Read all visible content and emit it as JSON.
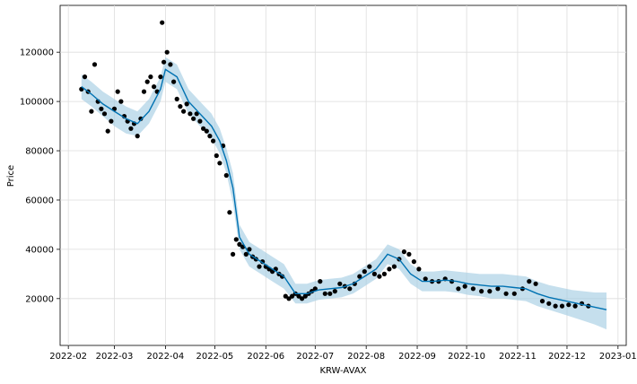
{
  "chart_data": {
    "type": "scatter",
    "title": "",
    "xlabel": "KRW-AVAX",
    "ylabel": "Price",
    "x_ticks": [
      "2022-02",
      "2022-03",
      "2022-04",
      "2022-05",
      "2022-06",
      "2022-07",
      "2022-08",
      "2022-09",
      "2022-10",
      "2022-11",
      "2022-12",
      "2023-01"
    ],
    "y_ticks": [
      20000,
      40000,
      60000,
      80000,
      100000,
      120000
    ],
    "xlim": [
      "2022-01-27",
      "2023-01-06"
    ],
    "ylim": [
      1000,
      139000
    ],
    "grid": true,
    "colors": {
      "points": "#000000",
      "forecast": "#0072B2",
      "interval": "#a6cee3"
    },
    "observed": {
      "x": [
        "2022-02-09",
        "2022-02-11",
        "2022-02-13",
        "2022-02-15",
        "2022-02-17",
        "2022-02-19",
        "2022-02-21",
        "2022-02-23",
        "2022-02-25",
        "2022-02-27",
        "2022-03-01",
        "2022-03-03",
        "2022-03-05",
        "2022-03-07",
        "2022-03-09",
        "2022-03-11",
        "2022-03-13",
        "2022-03-15",
        "2022-03-17",
        "2022-03-19",
        "2022-03-21",
        "2022-03-23",
        "2022-03-25",
        "2022-03-27",
        "2022-03-29",
        "2022-03-31",
        "2022-04-02",
        "2022-04-04",
        "2022-04-06",
        "2022-04-08",
        "2022-04-10",
        "2022-04-12",
        "2022-04-14",
        "2022-04-16",
        "2022-04-18",
        "2022-04-20",
        "2022-04-22",
        "2022-04-24",
        "2022-04-26",
        "2022-04-28",
        "2022-04-30",
        "2022-05-02",
        "2022-05-04",
        "2022-05-06",
        "2022-05-08",
        "2022-05-10",
        "2022-05-12",
        "2022-05-14",
        "2022-05-16",
        "2022-05-18",
        "2022-05-20",
        "2022-05-22",
        "2022-05-24",
        "2022-05-26",
        "2022-05-28",
        "2022-05-30",
        "2022-06-01",
        "2022-06-03",
        "2022-06-05",
        "2022-06-07",
        "2022-06-09",
        "2022-06-11",
        "2022-06-13",
        "2022-06-15",
        "2022-06-17",
        "2022-06-19",
        "2022-06-21",
        "2022-06-23",
        "2022-06-25",
        "2022-06-27",
        "2022-06-29",
        "2022-07-01",
        "2022-07-04",
        "2022-07-07",
        "2022-07-10",
        "2022-07-13",
        "2022-07-16",
        "2022-07-19",
        "2022-07-22",
        "2022-07-25",
        "2022-07-28",
        "2022-07-31",
        "2022-08-03",
        "2022-08-06",
        "2022-08-09",
        "2022-08-12",
        "2022-08-15",
        "2022-08-18",
        "2022-08-21",
        "2022-08-24",
        "2022-08-27",
        "2022-08-30",
        "2022-09-02",
        "2022-09-06",
        "2022-09-10",
        "2022-09-14",
        "2022-09-18",
        "2022-09-22",
        "2022-09-26",
        "2022-09-30",
        "2022-10-05",
        "2022-10-10",
        "2022-10-15",
        "2022-10-20",
        "2022-10-25",
        "2022-10-30",
        "2022-11-04",
        "2022-11-08",
        "2022-11-12",
        "2022-11-16",
        "2022-11-20",
        "2022-11-24",
        "2022-11-28",
        "2022-12-02",
        "2022-12-06",
        "2022-12-10",
        "2022-12-14",
        "2022-03-30"
      ],
      "y": [
        105000,
        110000,
        104000,
        96000,
        115000,
        100000,
        97000,
        95000,
        88000,
        92000,
        97000,
        104000,
        100000,
        94000,
        92000,
        89000,
        91000,
        86000,
        93000,
        104000,
        108000,
        110000,
        106000,
        104000,
        110000,
        116000,
        120000,
        115000,
        108000,
        101000,
        98000,
        96000,
        99000,
        95000,
        93000,
        95000,
        92000,
        89000,
        88000,
        86000,
        84000,
        78000,
        75000,
        82000,
        70000,
        55000,
        38000,
        44000,
        42000,
        41000,
        38000,
        40000,
        37000,
        36000,
        33000,
        35000,
        33000,
        32000,
        31000,
        32000,
        30000,
        29000,
        21000,
        20000,
        21000,
        22000,
        21000,
        20000,
        21000,
        22000,
        23000,
        24000,
        27000,
        22000,
        22000,
        23000,
        26000,
        25000,
        24000,
        26000,
        29000,
        31000,
        33000,
        30000,
        29000,
        30000,
        32000,
        33000,
        36000,
        39000,
        38000,
        35000,
        32000,
        28000,
        27000,
        27000,
        28000,
        27000,
        24000,
        25000,
        24000,
        23000,
        23000,
        24000,
        22000,
        22000,
        24000,
        27000,
        26000,
        19000,
        18000,
        17000,
        17000,
        17500,
        17000,
        18000,
        17000,
        132000
      ]
    },
    "forecast": {
      "x": [
        "2022-02-09",
        "2022-02-15",
        "2022-02-22",
        "2022-03-01",
        "2022-03-08",
        "2022-03-15",
        "2022-03-22",
        "2022-03-29",
        "2022-04-01",
        "2022-04-08",
        "2022-04-15",
        "2022-04-22",
        "2022-04-29",
        "2022-05-04",
        "2022-05-08",
        "2022-05-12",
        "2022-05-16",
        "2022-05-22",
        "2022-05-29",
        "2022-06-05",
        "2022-06-12",
        "2022-06-19",
        "2022-06-26",
        "2022-07-03",
        "2022-07-10",
        "2022-07-17",
        "2022-07-24",
        "2022-07-31",
        "2022-08-07",
        "2022-08-14",
        "2022-08-21",
        "2022-08-28",
        "2022-09-04",
        "2022-09-11",
        "2022-09-18",
        "2022-09-25",
        "2022-10-02",
        "2022-10-09",
        "2022-10-16",
        "2022-10-23",
        "2022-10-30",
        "2022-11-06",
        "2022-11-13",
        "2022-11-20",
        "2022-11-27",
        "2022-12-04",
        "2022-12-11",
        "2022-12-18",
        "2022-12-25"
      ],
      "yhat": [
        106000,
        103000,
        99000,
        96000,
        93000,
        91000,
        96000,
        105000,
        113000,
        110000,
        100000,
        95000,
        90000,
        84000,
        76000,
        65000,
        45000,
        38000,
        35000,
        32000,
        29000,
        22000,
        22000,
        23500,
        24000,
        24500,
        26000,
        29000,
        32000,
        38000,
        36000,
        30000,
        27000,
        27000,
        27500,
        27000,
        26000,
        25500,
        25000,
        25000,
        24500,
        24000,
        22000,
        20500,
        19500,
        18500,
        17500,
        16500,
        15500
      ],
      "lower": [
        101000,
        98000,
        94000,
        90000,
        87000,
        86000,
        91000,
        100000,
        108000,
        105000,
        95000,
        90000,
        85000,
        79000,
        71000,
        59000,
        40000,
        33000,
        30000,
        27000,
        24000,
        18000,
        18000,
        19500,
        20000,
        20500,
        22000,
        25000,
        28000,
        34000,
        32000,
        26000,
        23000,
        23000,
        23000,
        22500,
        21500,
        21000,
        20000,
        20000,
        19500,
        19000,
        17000,
        15500,
        14000,
        12500,
        11000,
        9500,
        7500
      ],
      "upper": [
        111000,
        108000,
        104000,
        101000,
        98000,
        96000,
        101000,
        110000,
        118000,
        115000,
        105000,
        100000,
        95000,
        89000,
        81000,
        71000,
        50000,
        43000,
        40000,
        37000,
        34000,
        26000,
        26000,
        27500,
        28000,
        28500,
        30000,
        33000,
        36000,
        42000,
        40000,
        34000,
        31000,
        31000,
        31500,
        31000,
        30500,
        30000,
        30000,
        30000,
        29500,
        29000,
        27000,
        25500,
        24500,
        23500,
        23000,
        22500,
        22500
      ]
    }
  }
}
